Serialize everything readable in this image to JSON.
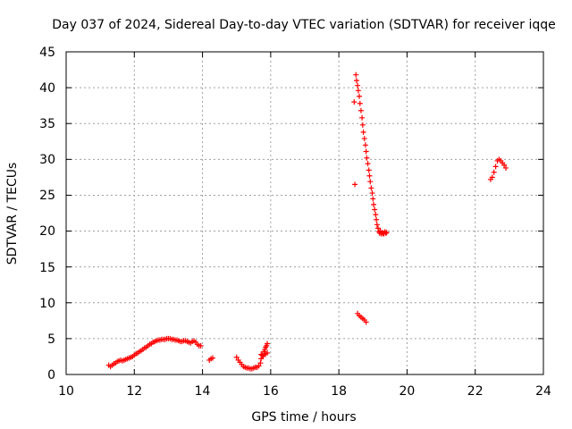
{
  "chart_data": {
    "type": "scatter",
    "title": "Day 037 of 2024, Sidereal Day-to-day VTEC variation (SDTVAR) for receiver iqqe",
    "xlabel": "GPS time / hours",
    "ylabel": "SDTVAR / TECUs",
    "xlim": [
      10,
      24
    ],
    "ylim": [
      0,
      45
    ],
    "xticks": [
      "10",
      "12",
      "14",
      "16",
      "18",
      "20",
      "22",
      "24"
    ],
    "yticks": [
      "0",
      "5",
      "10",
      "15",
      "20",
      "25",
      "30",
      "35",
      "40",
      "45"
    ],
    "grid": true,
    "marker": "+",
    "color": "#ff0000",
    "series": [
      {
        "name": "SDTVAR",
        "x": [
          11.25,
          11.3,
          11.35,
          11.4,
          11.45,
          11.5,
          11.55,
          11.6,
          11.65,
          11.7,
          11.75,
          11.8,
          11.85,
          11.9,
          11.95,
          12.0,
          12.05,
          12.1,
          12.15,
          12.2,
          12.25,
          12.3,
          12.35,
          12.4,
          12.45,
          12.5,
          12.55,
          12.6,
          12.65,
          12.7,
          12.75,
          12.8,
          12.85,
          12.9,
          12.95,
          13.0,
          13.05,
          13.1,
          13.15,
          13.2,
          13.25,
          13.3,
          13.35,
          13.4,
          13.45,
          13.5,
          13.55,
          13.6,
          13.65,
          13.7,
          13.75,
          13.8,
          13.85,
          13.9,
          13.95,
          14.2,
          14.25,
          14.3,
          15.0,
          15.05,
          15.1,
          15.15,
          15.2,
          15.25,
          15.3,
          15.35,
          15.4,
          15.45,
          15.5,
          15.55,
          15.6,
          15.65,
          15.7,
          15.72,
          15.75,
          15.78,
          15.8,
          15.83,
          15.85,
          15.88,
          15.9,
          15.72,
          15.75,
          15.8,
          15.85,
          15.9,
          18.45,
          18.5,
          18.52,
          18.55,
          18.57,
          18.6,
          18.62,
          18.65,
          18.68,
          18.7,
          18.72,
          18.75,
          18.78,
          18.8,
          18.82,
          18.85,
          18.88,
          18.9,
          18.92,
          18.95,
          18.98,
          19.0,
          19.02,
          19.05,
          19.08,
          19.1,
          19.12,
          19.15,
          19.18,
          19.2,
          19.22,
          19.25,
          19.28,
          19.3,
          19.32,
          19.35,
          19.38,
          19.4,
          18.47,
          18.55,
          18.6,
          18.65,
          18.7,
          18.75,
          18.8,
          22.45,
          22.5,
          22.55,
          22.6,
          22.65,
          22.7,
          22.75,
          22.8,
          22.85,
          22.9
        ],
        "y": [
          1.3,
          1.1,
          1.3,
          1.5,
          1.6,
          1.8,
          1.9,
          2.0,
          1.9,
          2.0,
          2.1,
          2.2,
          2.3,
          2.4,
          2.5,
          2.7,
          2.9,
          3.0,
          3.2,
          3.3,
          3.5,
          3.7,
          3.8,
          4.0,
          4.2,
          4.3,
          4.5,
          4.6,
          4.7,
          4.8,
          4.8,
          4.9,
          4.9,
          4.9,
          5.0,
          5.0,
          5.0,
          4.9,
          4.9,
          4.8,
          4.8,
          4.7,
          4.6,
          4.6,
          4.7,
          4.7,
          4.6,
          4.5,
          4.4,
          4.6,
          4.7,
          4.5,
          4.2,
          4.0,
          4.0,
          2.0,
          2.2,
          2.3,
          2.4,
          2.0,
          1.7,
          1.4,
          1.1,
          1.0,
          0.9,
          0.9,
          0.8,
          0.8,
          0.9,
          1.0,
          1.0,
          1.2,
          1.6,
          2.2,
          2.7,
          2.5,
          3.2,
          3.5,
          3.8,
          4.0,
          4.3,
          2.8,
          2.7,
          2.8,
          2.9,
          3.0,
          38.0,
          41.8,
          41.0,
          40.3,
          39.6,
          38.8,
          37.8,
          36.8,
          35.8,
          34.8,
          33.8,
          32.9,
          32.0,
          31.1,
          30.2,
          29.4,
          28.5,
          27.7,
          26.9,
          26.0,
          25.3,
          24.5,
          23.7,
          23.0,
          22.3,
          21.6,
          20.9,
          20.4,
          19.9,
          19.7,
          20.0,
          19.6,
          19.8,
          19.7,
          19.6,
          19.9,
          19.7,
          19.8,
          26.5,
          8.5,
          8.2,
          8.0,
          7.8,
          7.6,
          7.3,
          27.2,
          27.5,
          28.2,
          29.0,
          29.8,
          30.0,
          29.8,
          29.5,
          29.2,
          28.8
        ]
      }
    ]
  }
}
